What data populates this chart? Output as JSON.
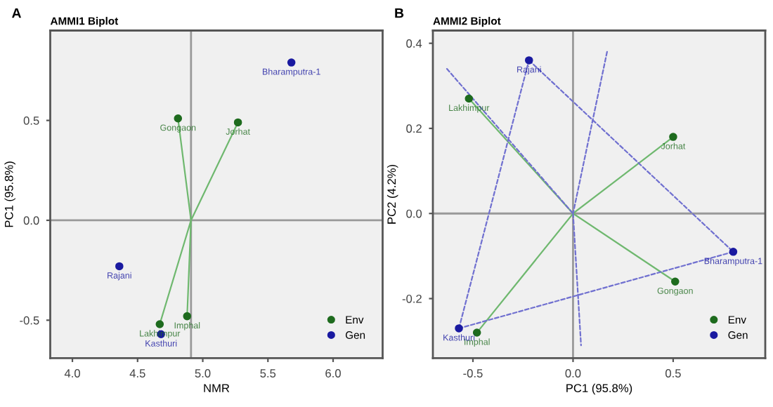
{
  "chart_data": [
    {
      "type": "scatter",
      "title": "AMMI1 Biplot",
      "xlabel": "NMR",
      "ylabel": "PC1 (95.8%)",
      "xlim": [
        3.83,
        6.38
      ],
      "ylim": [
        -0.69,
        0.95
      ],
      "xticks": [
        {
          "value": 4.0,
          "label": "4.0"
        },
        {
          "value": 4.5,
          "label": "4.5"
        },
        {
          "value": 5.0,
          "label": "5.0"
        },
        {
          "value": 5.5,
          "label": "5.5"
        },
        {
          "value": 6.0,
          "label": "6.0"
        }
      ],
      "yticks": [
        {
          "value": -0.5,
          "label": "-0.5"
        },
        {
          "value": 0.0,
          "label": "0.0"
        },
        {
          "value": 0.5,
          "label": "0.5"
        }
      ],
      "grid": false,
      "legend": "bottom right",
      "marker": "circle",
      "ref_lines": [
        {
          "axis": "x",
          "value": 4.91,
          "color": "#999999"
        },
        {
          "axis": "y",
          "value": 0,
          "color": "#999999"
        }
      ],
      "series": [
        {
          "type": "line",
          "marker": "none",
          "color": "#6fb86f",
          "line_style": "solid",
          "x": [
            4.91,
            4.81,
            null,
            4.91,
            5.27,
            null,
            4.91,
            4.67,
            null,
            4.91,
            4.88
          ],
          "values": [
            0,
            0.51,
            null,
            0,
            0.49,
            null,
            0,
            -0.52,
            null,
            0,
            -0.48
          ]
        },
        {
          "name": "Env",
          "color": "#1e6b1e",
          "x": [
            4.81,
            5.27,
            4.67,
            4.88
          ],
          "values": [
            0.51,
            0.49,
            -0.52,
            -0.48
          ]
        },
        {
          "name": "Gen",
          "color": "#1a1aa0",
          "x": [
            5.68,
            4.36,
            4.68
          ],
          "values": [
            0.79,
            -0.23,
            -0.57
          ]
        }
      ],
      "annotations": [
        "A",
        {
          "text": "Gongaon",
          "x": 4.81,
          "y": 0.51
        },
        {
          "text": "Jorhat",
          "x": 5.27,
          "y": 0.49
        },
        {
          "text": "Lakhimpur",
          "x": 4.67,
          "y": -0.52
        },
        {
          "text": "Imphal",
          "x": 4.88,
          "y": -0.48
        },
        {
          "text": "Bharamputra-1",
          "x": 5.68,
          "y": 0.79
        },
        {
          "text": "Rajani",
          "x": 4.36,
          "y": -0.23
        },
        {
          "text": "Kasthuri",
          "x": 4.68,
          "y": -0.57
        }
      ]
    },
    {
      "type": "scatter",
      "title": "AMMI2 Biplot",
      "xlabel": "PC1 (95.8%)",
      "ylabel": "PC2 (4.2%)",
      "xlim": [
        -0.7,
        0.96
      ],
      "ylim": [
        -0.34,
        0.43
      ],
      "xticks": [
        {
          "value": -0.5,
          "label": "-0.5"
        },
        {
          "value": 0.0,
          "label": "0.0"
        },
        {
          "value": 0.5,
          "label": "0.5"
        }
      ],
      "yticks": [
        {
          "value": -0.2,
          "label": "-0.2"
        },
        {
          "value": 0.0,
          "label": "0.0"
        },
        {
          "value": 0.2,
          "label": "0.2"
        },
        {
          "value": 0.4,
          "label": "0.4"
        }
      ],
      "grid": false,
      "legend": "bottom right",
      "marker": "circle",
      "ref_lines": [
        {
          "axis": "x",
          "value": 0,
          "color": "#999999"
        },
        {
          "axis": "y",
          "value": 0,
          "color": "#999999"
        }
      ],
      "series": [
        {
          "type": "line",
          "marker": "none",
          "color": "#6fb86f",
          "line_style": "solid",
          "x": [
            0,
            -0.52,
            null,
            0,
            0.5,
            null,
            0,
            0.51,
            null,
            0,
            -0.48
          ],
          "values": [
            0,
            0.27,
            null,
            0,
            0.18,
            null,
            0,
            -0.16,
            null,
            0,
            -0.28
          ]
        },
        {
          "type": "line",
          "marker": "none",
          "color": "#7070d0",
          "line_style": "dashed",
          "x": [
            -0.22,
            0.8,
            null,
            0.8,
            -0.57,
            null,
            -0.57,
            -0.22
          ],
          "values": [
            0.36,
            -0.09,
            null,
            -0.09,
            -0.27,
            null,
            -0.27,
            0.36
          ]
        },
        {
          "type": "line",
          "marker": "none",
          "color": "#7070d0",
          "line_style": "dashed",
          "x": [
            -0.63,
            0,
            null,
            0.17,
            0,
            null,
            0,
            0.04
          ],
          "values": [
            0.34,
            0,
            null,
            0.38,
            0,
            null,
            0,
            -0.31
          ]
        },
        {
          "name": "Env",
          "color": "#1e6b1e",
          "x": [
            -0.52,
            0.5,
            0.51,
            -0.48
          ],
          "values": [
            0.27,
            0.18,
            -0.16,
            -0.28
          ]
        },
        {
          "name": "Gen",
          "color": "#1a1aa0",
          "x": [
            -0.22,
            0.8,
            -0.57
          ],
          "values": [
            0.36,
            -0.09,
            -0.27
          ]
        }
      ],
      "annotations": [
        "B",
        {
          "text": "Lakhimpur",
          "x": -0.52,
          "y": 0.27
        },
        {
          "text": "Jorhat",
          "x": 0.5,
          "y": 0.18
        },
        {
          "text": "Gongaon",
          "x": 0.51,
          "y": -0.16
        },
        {
          "text": "Imphal",
          "x": -0.48,
          "y": -0.28
        },
        {
          "text": "Rajani",
          "x": -0.22,
          "y": 0.36
        },
        {
          "text": "Bharamputra-1",
          "x": 0.8,
          "y": -0.09
        },
        {
          "text": "Kasthuri",
          "x": -0.57,
          "y": -0.27
        }
      ]
    }
  ]
}
